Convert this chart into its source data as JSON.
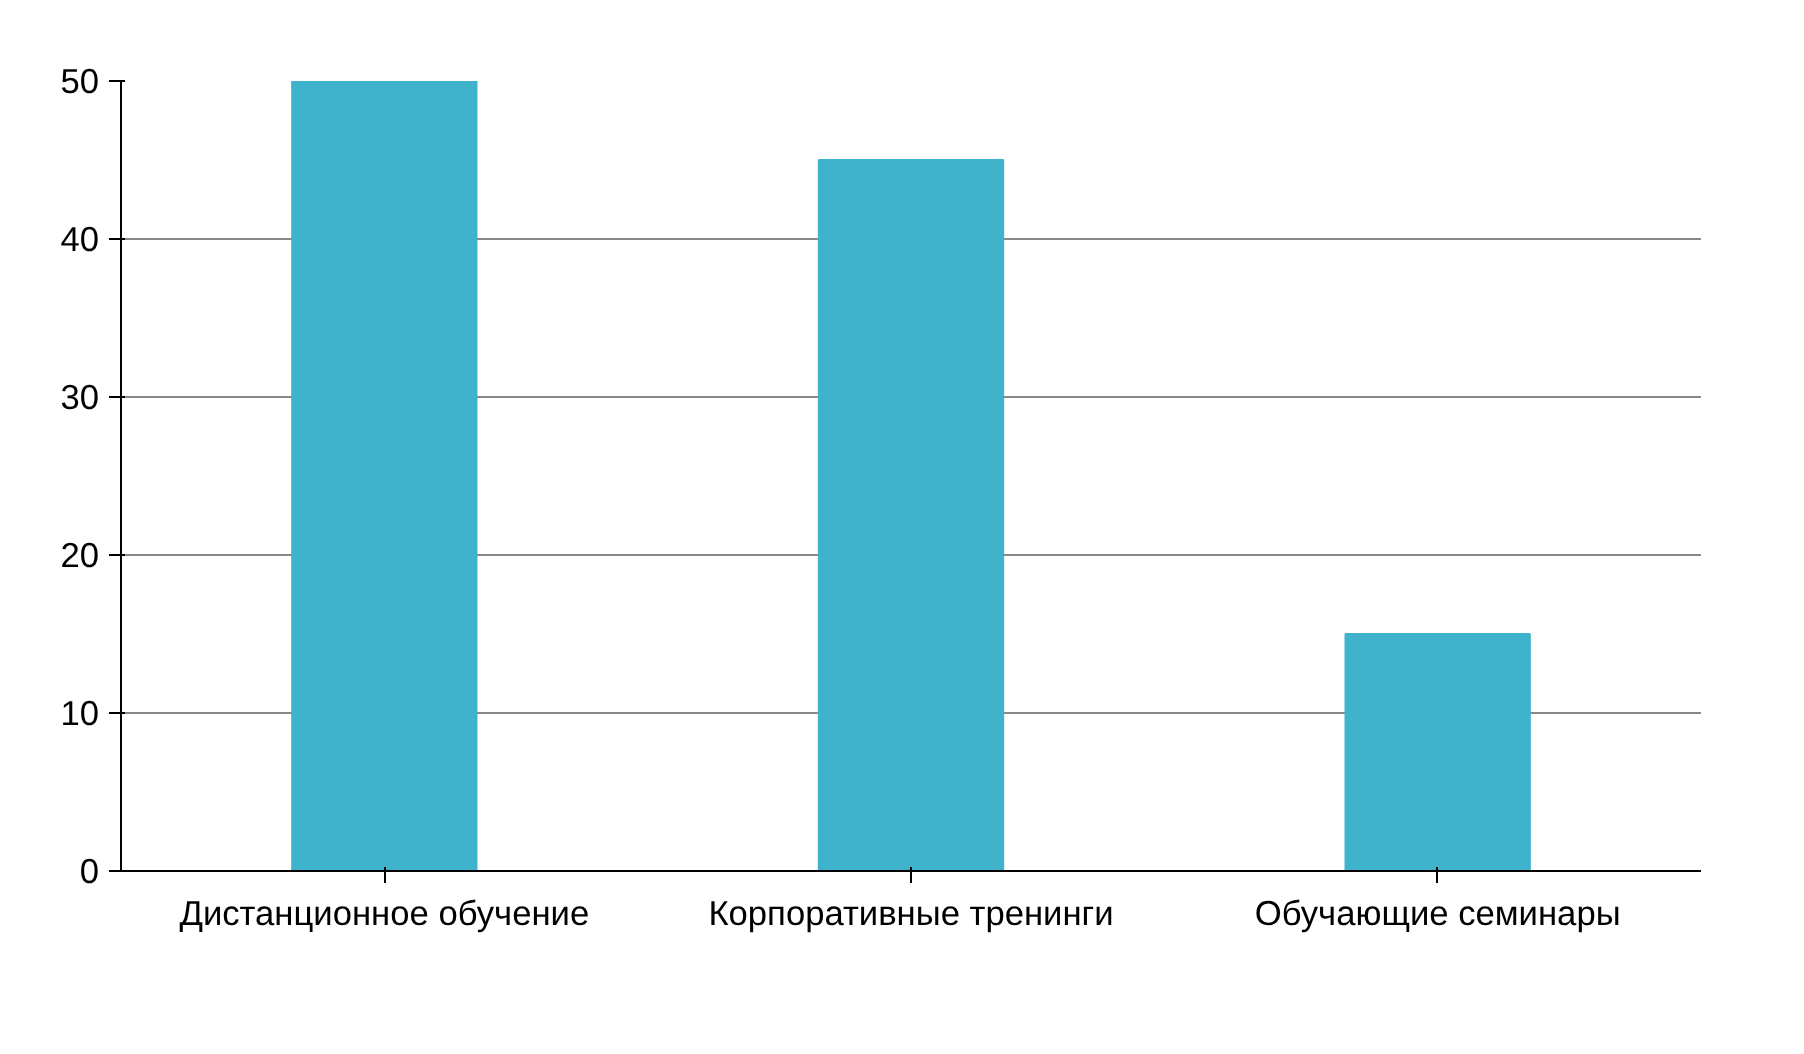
{
  "chart_data": {
    "type": "bar",
    "categories": [
      "Дистанционное обучение",
      "Корпоративные тренинги",
      "Обучающие семинары"
    ],
    "values": [
      50,
      45,
      15
    ],
    "color": "#3fb3cc",
    "ylim": [
      0,
      50
    ],
    "yticks": [
      0,
      10,
      20,
      30,
      40,
      50
    ],
    "grid": "y"
  }
}
